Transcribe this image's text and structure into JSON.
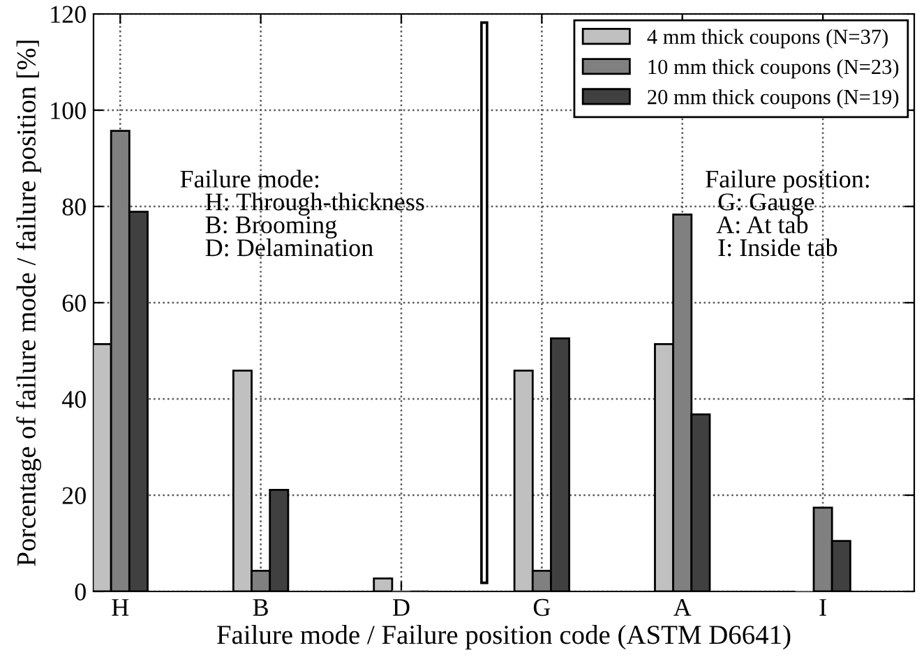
{
  "chart_data": {
    "type": "bar",
    "xlabel": "Failure mode / Failure position code (ASTM D6641)",
    "ylabel": "Porcentage of failure mode / failure position [%]",
    "categories": [
      "H",
      "B",
      "D",
      "G",
      "A",
      "I"
    ],
    "series": [
      {
        "name": "4 mm thick coupons (N=37)",
        "color": "#c0c0c0",
        "values": [
          51.4,
          45.9,
          2.7,
          45.9,
          51.4,
          0
        ]
      },
      {
        "name": "10 mm thick coupons (N=23)",
        "color": "#808080",
        "values": [
          95.7,
          4.3,
          0,
          4.3,
          78.3,
          17.4
        ]
      },
      {
        "name": "20 mm thick coupons (N=19)",
        "color": "#404040",
        "values": [
          78.9,
          21.1,
          0,
          52.6,
          36.8,
          10.5
        ]
      }
    ],
    "ylim": [
      0,
      120
    ],
    "yticks": [
      0,
      20,
      40,
      60,
      80,
      100,
      120
    ],
    "grid": true,
    "legend": "top right",
    "annotations": [
      "Failure mode:\n    H: Through-thickness\n    B: Brooming\n    D: Delamination",
      "Failure position:\n  G: Gauge\n  A: At tab\n  I: Inside tab"
    ]
  }
}
